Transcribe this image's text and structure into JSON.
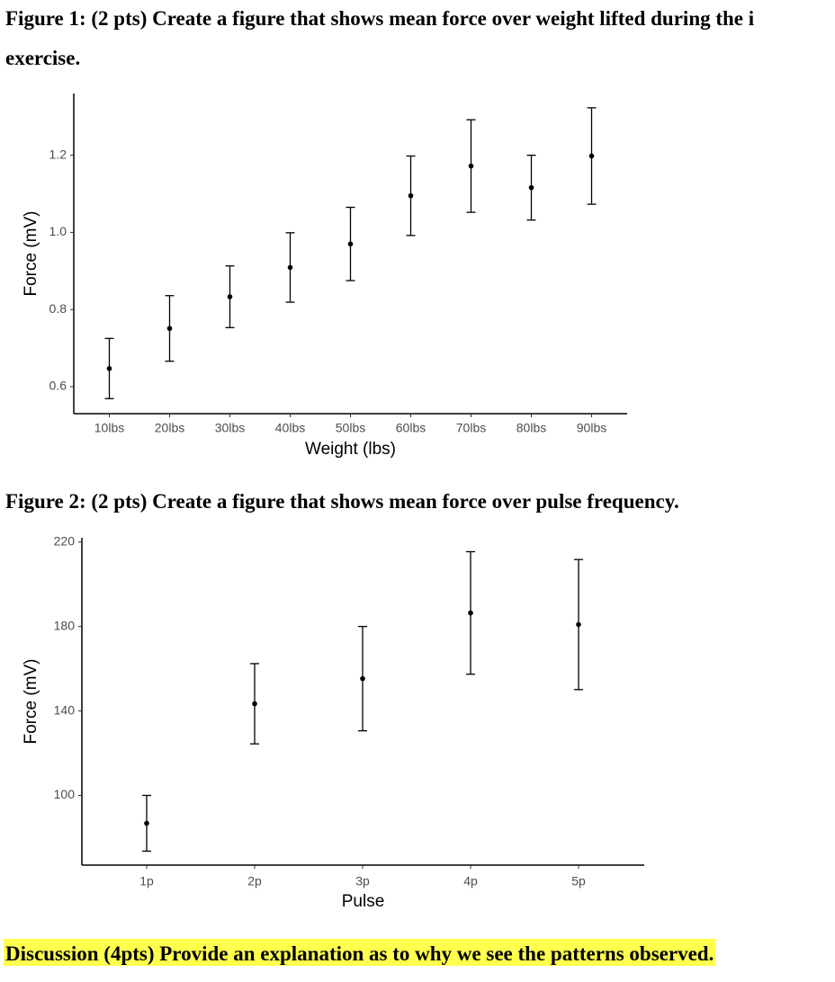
{
  "figure1_heading": [
    "Figure 1: (2 pts) Create a figure that shows mean force over weight lifted during the i",
    "exercise."
  ],
  "figure2_heading": "Figure 2: (2 pts) Create a figure that shows mean force over pulse frequency.",
  "discussion": "Discussion (4pts) Provide an explanation as to why we see the patterns observed.",
  "chart_data": [
    {
      "type": "errorbar",
      "x_label": "Weight (lbs)",
      "y_label": "Force (mV)",
      "categories": [
        "10lbs",
        "20lbs",
        "30lbs",
        "40lbs",
        "50lbs",
        "60lbs",
        "70lbs",
        "80lbs",
        "90lbs"
      ],
      "values": [
        0.647,
        0.751,
        0.833,
        0.909,
        0.97,
        1.095,
        1.172,
        1.116,
        1.198
      ],
      "errors": [
        0.078,
        0.085,
        0.08,
        0.09,
        0.095,
        0.103,
        0.12,
        0.084,
        0.125
      ],
      "color": "#000000",
      "ylim": [
        0.53,
        1.36
      ],
      "yticks": [
        0.6,
        0.8,
        {
          "value": 1,
          "label": "1.0"
        },
        1.2
      ],
      "grid": false
    },
    {
      "type": "errorbar",
      "x_label": "Pulse",
      "y_label": "Force (mV)",
      "categories": [
        "1p",
        "2p",
        "3p",
        "4p",
        "5p"
      ],
      "values": [
        86.8,
        143.4,
        155.3,
        186.4,
        180.9
      ],
      "errors": [
        13.2,
        19,
        24.7,
        29,
        30.8
      ],
      "color": "#000000",
      "ylim": [
        67,
        222
      ],
      "yticks": [
        100,
        140,
        180,
        220
      ],
      "grid": false
    }
  ]
}
